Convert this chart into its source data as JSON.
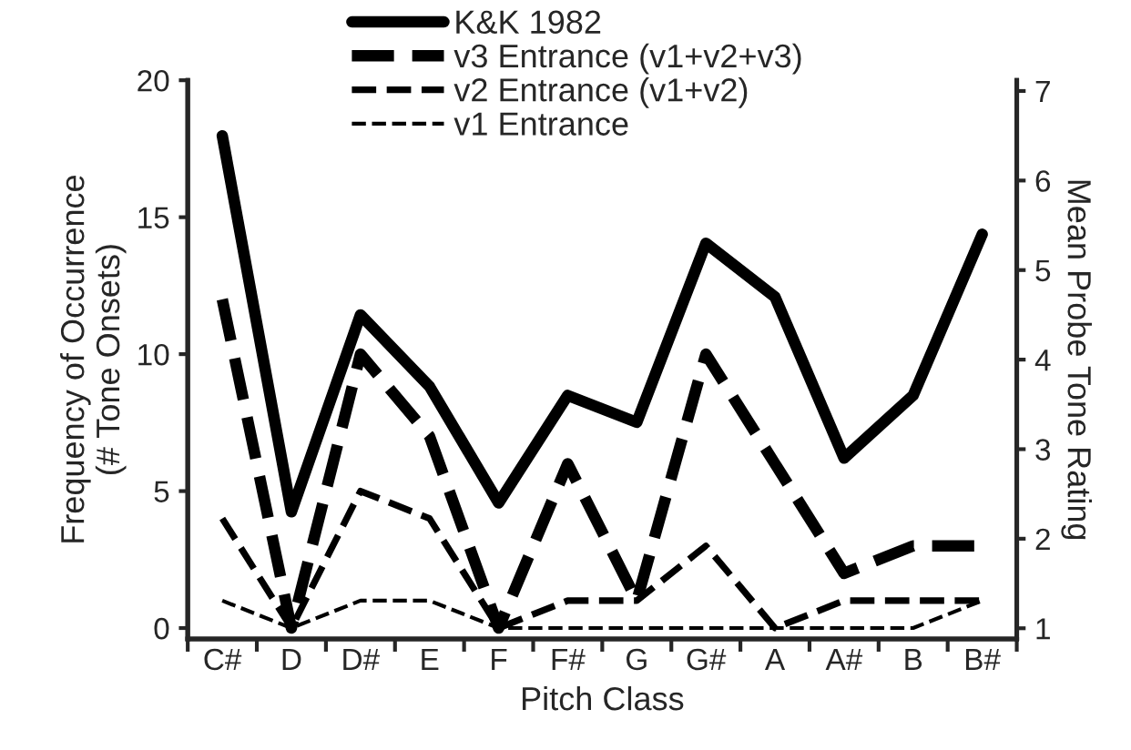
{
  "chart_data": {
    "type": "line",
    "xlabel": "Pitch Class",
    "ylabel": "Frequency of Occurrence\n(# Tone Onsets)",
    "y2label": "Mean Probe Tone Rating",
    "categories": [
      "C#",
      "D",
      "D#",
      "E",
      "F",
      "F#",
      "G",
      "G#",
      "A",
      "A#",
      "B",
      "B#"
    ],
    "series": [
      {
        "name": "K&K 1982",
        "color": "#000000",
        "axis": "y2",
        "line_style": "solid",
        "values": [
          6.5,
          2.3,
          4.5,
          3.7,
          2.4,
          3.6,
          3.3,
          5.3,
          4.7,
          2.9,
          3.6,
          5.4
        ]
      },
      {
        "name": "v3 Entrance (v1+v2+v3)",
        "color": "#000000",
        "line_style": "dashed",
        "values": [
          12,
          0,
          10,
          7,
          0,
          6,
          1,
          10,
          6,
          2,
          3,
          3
        ]
      },
      {
        "name": "v2 Entrance (v1+v2)",
        "color": "#000000",
        "line_style": "dashed",
        "values": [
          4,
          0,
          5,
          4,
          0,
          1,
          1,
          3,
          0,
          1,
          1,
          1
        ]
      },
      {
        "name": "v1 Entrance",
        "color": "#000000",
        "line_style": "dashed",
        "values": [
          1,
          0,
          1,
          1,
          0,
          0,
          0,
          0,
          0,
          0,
          0,
          1
        ]
      }
    ],
    "ylim": [
      -0.4,
      20
    ],
    "yticks": [
      0,
      5,
      10,
      15,
      20
    ],
    "y2lim": [
      0.88,
      7.12
    ],
    "y2ticks": [
      1,
      2,
      3,
      4,
      5,
      6,
      7
    ],
    "grid": false,
    "legend": "top",
    "marker": "none"
  }
}
